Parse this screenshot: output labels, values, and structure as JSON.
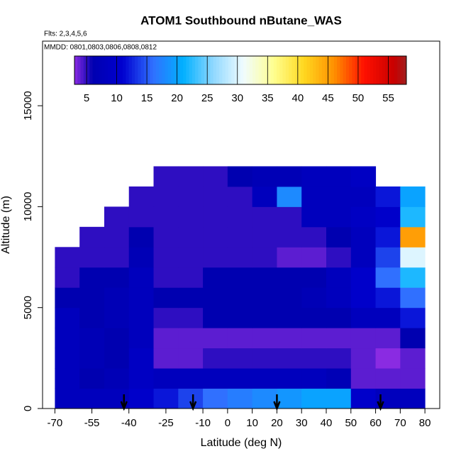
{
  "chart_data": {
    "type": "heatmap",
    "title": "ATOM1 Southbound nButane_WAS",
    "annotations": [
      "Flts: 2,3,4,5,6",
      "MMDD: 0801,0803,0806,0808,0812"
    ],
    "x_label": "Latitude (deg N)",
    "y_label": "Altitude (m)",
    "xlim": [
      -75,
      86
    ],
    "ylim": [
      0,
      18200
    ],
    "xticks": [
      -70,
      -55,
      -40,
      -25,
      -10,
      0,
      10,
      20,
      30,
      40,
      50,
      60,
      70,
      80
    ],
    "yticks": [
      0,
      5000,
      10000,
      15000
    ],
    "x_edges": [
      -70,
      -60,
      -50,
      -40,
      -30,
      -20,
      -10,
      0,
      10,
      20,
      30,
      40,
      50,
      60,
      70,
      80
    ],
    "y_edges": [
      0,
      1000,
      2000,
      3000,
      4000,
      5000,
      6000,
      7000,
      8000,
      9000,
      10000,
      11000,
      12000
    ],
    "z": [
      [
        8,
        8,
        8,
        10,
        12,
        14,
        16,
        17,
        18,
        19,
        20,
        20,
        10,
        8,
        8
      ],
      [
        8,
        6,
        7,
        9,
        8,
        8,
        8,
        8,
        8,
        8,
        8,
        7,
        4,
        4,
        4
      ],
      [
        8,
        7,
        6,
        9,
        4,
        4,
        5,
        5,
        5,
        5,
        5,
        5,
        4,
        3,
        4
      ],
      [
        8,
        7,
        6,
        8,
        4,
        4,
        4,
        4,
        4,
        4,
        4,
        4,
        4,
        4,
        6
      ],
      [
        8,
        6,
        7,
        8,
        5,
        5,
        6,
        6,
        6,
        6,
        6,
        6,
        8,
        8,
        12
      ],
      [
        6,
        6,
        7,
        8,
        6,
        6,
        6,
        6,
        6,
        6,
        7,
        8,
        10,
        12,
        16
      ],
      [
        5,
        6,
        6,
        8,
        5,
        5,
        6,
        6,
        6,
        6,
        6,
        8,
        10,
        16,
        22
      ],
      [
        5,
        5,
        5,
        7,
        5,
        5,
        5,
        5,
        5,
        4,
        4,
        5,
        8,
        14,
        30
      ],
      [
        null,
        5,
        5,
        6,
        5,
        5,
        5,
        5,
        5,
        5,
        5,
        6,
        8,
        12,
        45
      ],
      [
        null,
        null,
        5,
        5,
        5,
        5,
        5,
        5,
        5,
        5,
        8,
        8,
        9,
        10,
        22
      ],
      [
        null,
        null,
        null,
        5,
        5,
        5,
        5,
        5,
        8,
        18,
        8,
        8,
        8,
        12,
        20
      ],
      [
        null,
        null,
        null,
        null,
        5,
        5,
        5,
        6,
        7,
        7,
        8,
        8,
        9,
        null,
        null
      ]
    ],
    "arrows": [
      -42,
      -14,
      20,
      62
    ],
    "clim": [
      3,
      58
    ],
    "cticks": [
      5,
      10,
      15,
      20,
      25,
      30,
      35,
      40,
      45,
      50,
      55
    ],
    "colorscale": [
      {
        "value": 3,
        "color": "#8a2be2"
      },
      {
        "value": 6,
        "color": "#0000b0"
      },
      {
        "value": 11,
        "color": "#0000d0"
      },
      {
        "value": 16,
        "color": "#3070ff"
      },
      {
        "value": 21,
        "color": "#00b0ff"
      },
      {
        "value": 26,
        "color": "#90d8ff"
      },
      {
        "value": 31,
        "color": "#f0fcff"
      },
      {
        "value": 36,
        "color": "#ffff90"
      },
      {
        "value": 41,
        "color": "#ffd820"
      },
      {
        "value": 46,
        "color": "#ff9000"
      },
      {
        "value": 51,
        "color": "#ff1000"
      },
      {
        "value": 56,
        "color": "#c80000"
      },
      {
        "value": 58,
        "color": "#a02020"
      }
    ]
  }
}
